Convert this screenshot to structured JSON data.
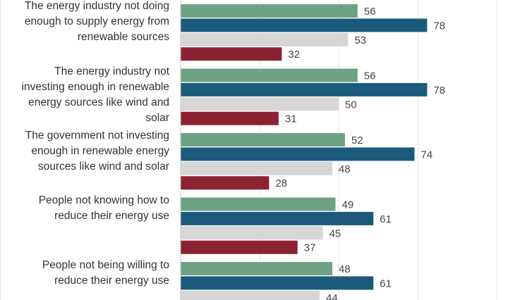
{
  "chart_data": {
    "type": "bar",
    "orientation": "horizontal",
    "grid": true,
    "categories": [
      "The energy industry not doing\nenough to supply energy from\nrenewable sources",
      "The energy industry not\ninvesting enough in renewable\nenergy sources like wind and\nsolar",
      "The government not investing\nenough in renewable energy\nsources like wind and solar",
      "People not knowing how to\nreduce their energy use",
      "People not being willing to\nreduce their energy use"
    ],
    "series": [
      {
        "color": "#6fa283",
        "values": [
          56,
          56,
          52,
          49,
          48
        ]
      },
      {
        "color": "#1b5a7a",
        "values": [
          78,
          78,
          74,
          61,
          61
        ]
      },
      {
        "color": "#d6d6d6",
        "values": [
          53,
          50,
          48,
          45,
          44
        ]
      },
      {
        "color": "#8b2232",
        "values": [
          32,
          31,
          28,
          37,
          null
        ]
      }
    ]
  }
}
